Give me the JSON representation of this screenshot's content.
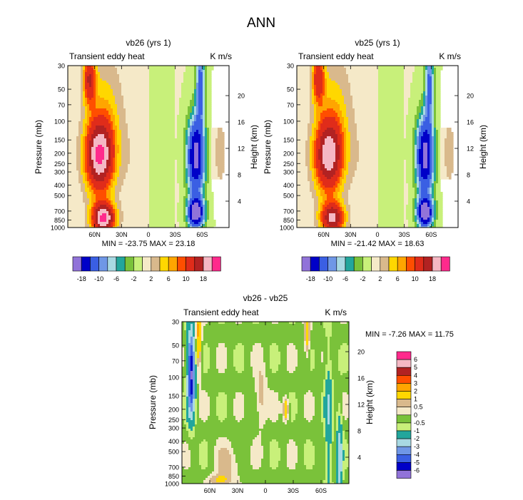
{
  "figure_title": "ANN",
  "colors": {
    "diverging_scale": [
      "#9173d9",
      "#0000c8",
      "#3a5fe3",
      "#6f97e6",
      "#a8d9e3",
      "#22a69c",
      "#7ac23a",
      "#c8f07a",
      "#f5e9c8",
      "#d9b98c",
      "#ffd700",
      "#ffa500",
      "#ff4e00",
      "#e02c1a",
      "#b22222",
      "#f5b8c4",
      "#ff2a8c"
    ]
  },
  "chart_data": [
    {
      "type": "heatmap",
      "title": "vb26 (yrs 1)",
      "left_label": "Transient eddy heat",
      "right_label": "K m/s",
      "ylabel": "Pressure (mb)",
      "ylabel_right": "Height (km)",
      "x_ticks": [
        "60N",
        "30N",
        "0",
        "30S",
        "60S"
      ],
      "x_tick_lat": [
        60,
        30,
        0,
        -30,
        -60
      ],
      "x_range_lat": [
        90,
        -90
      ],
      "y_ticks": [
        "30",
        "50",
        "70",
        "100",
        "150",
        "200",
        "250",
        "300",
        "400",
        "500",
        "700",
        "850",
        "1000"
      ],
      "y_range_mb": [
        30,
        1000
      ],
      "height_ticks": [
        "20",
        "16",
        "12",
        "8",
        "4"
      ],
      "height_tick_values": [
        20,
        16,
        12,
        8,
        4
      ],
      "min_max_text": "MIN = -23.75   MAX =  23.18",
      "levels": [
        "-18",
        "-10",
        "-6",
        "-2",
        "2",
        "6",
        "10",
        "18"
      ],
      "features": [
        {
          "lat": 55,
          "p": 200,
          "value": 20
        },
        {
          "lat": 50,
          "p": 850,
          "value": 23
        },
        {
          "lat": 68,
          "p": 40,
          "value": 14
        },
        {
          "lat": -55,
          "p": 200,
          "value": -20
        },
        {
          "lat": -55,
          "p": 750,
          "value": -23
        },
        {
          "lat": -58,
          "p": 40,
          "value": -12
        }
      ]
    },
    {
      "type": "heatmap",
      "title": "vb25 (yrs 1)",
      "left_label": "Transient eddy heat",
      "right_label": "K m/s",
      "ylabel": "Pressure (mb)",
      "ylabel_right": "Height (km)",
      "x_ticks": [
        "60N",
        "30N",
        "0",
        "30S",
        "60S"
      ],
      "x_tick_lat": [
        60,
        30,
        0,
        -30,
        -60
      ],
      "x_range_lat": [
        90,
        -90
      ],
      "y_ticks": [
        "30",
        "50",
        "70",
        "100",
        "150",
        "200",
        "250",
        "300",
        "400",
        "500",
        "700",
        "850",
        "1000"
      ],
      "y_range_mb": [
        30,
        1000
      ],
      "height_ticks": [
        "20",
        "16",
        "12",
        "8",
        "4"
      ],
      "height_tick_values": [
        20,
        16,
        12,
        8,
        4
      ],
      "min_max_text": "MIN = -21.42   MAX =  18.63",
      "levels": [
        "-18",
        "-10",
        "-6",
        "-2",
        "2",
        "6",
        "10",
        "18"
      ],
      "features": [
        {
          "lat": 55,
          "p": 200,
          "value": 18
        },
        {
          "lat": 50,
          "p": 850,
          "value": 18
        },
        {
          "lat": 68,
          "p": 40,
          "value": 12
        },
        {
          "lat": -55,
          "p": 200,
          "value": -20
        },
        {
          "lat": -55,
          "p": 750,
          "value": -21
        },
        {
          "lat": -58,
          "p": 40,
          "value": -11
        }
      ]
    },
    {
      "type": "heatmap",
      "title": "vb26 - vb25",
      "left_label": "Transient eddy heat",
      "right_label": "K m/s",
      "ylabel": "Pressure (mb)",
      "ylabel_right": "Height (km)",
      "x_ticks": [
        "60N",
        "30N",
        "0",
        "30S",
        "60S"
      ],
      "x_tick_lat": [
        60,
        30,
        0,
        -30,
        -60
      ],
      "x_range_lat": [
        90,
        -90
      ],
      "y_ticks": [
        "30",
        "50",
        "70",
        "100",
        "150",
        "200",
        "250",
        "300",
        "400",
        "500",
        "700",
        "850",
        "1000"
      ],
      "y_range_mb": [
        30,
        1000
      ],
      "height_ticks": [
        "20",
        "16",
        "12",
        "8",
        "4"
      ],
      "height_tick_values": [
        20,
        16,
        12,
        8,
        4
      ],
      "min_max_text": "MIN = -7.26   MAX = 11.75",
      "levels": [
        "6",
        "5",
        "4",
        "3",
        "2",
        "1",
        "0.5",
        "0",
        "-0.5",
        "-1",
        "-2",
        "-3",
        "-4",
        "-5",
        "-6"
      ],
      "features": [
        {
          "lat": 80,
          "p": 80,
          "value": -6
        },
        {
          "lat": 72,
          "p": 40,
          "value": 2
        },
        {
          "lat": -45,
          "p": 40,
          "value": 1.5
        },
        {
          "lat": 5,
          "p": 150,
          "value": 1
        },
        {
          "lat": -25,
          "p": 200,
          "value": 2
        },
        {
          "lat": -65,
          "p": 300,
          "value": -1.5
        },
        {
          "lat": 40,
          "p": 600,
          "value": 0.5
        },
        {
          "lat": 50,
          "p": 900,
          "value": 1
        }
      ]
    }
  ]
}
